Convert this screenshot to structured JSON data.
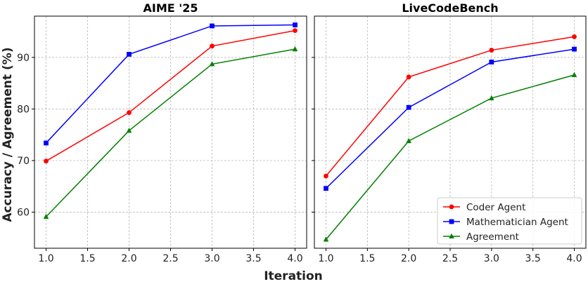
{
  "chart_data": {
    "type": "line",
    "xlabel": "Iteration",
    "ylabel": "Accuracy / Agreement (%)",
    "legend": {
      "placement": "lower-right",
      "panel": "LiveCodeBench"
    },
    "grid": true,
    "series_styles": [
      {
        "name": "Coder Agent",
        "color": "#ff0000",
        "marker": "circle"
      },
      {
        "name": "Mathematician Agent",
        "color": "#0000ff",
        "marker": "square"
      },
      {
        "name": "Agreement",
        "color": "#008000",
        "marker": "triangle"
      }
    ],
    "x_ticks": [
      "1.0",
      "1.5",
      "2.0",
      "2.5",
      "3.0",
      "3.5",
      "4.0"
    ],
    "y_ticks": [
      "60",
      "70",
      "80",
      "90"
    ],
    "xlim": [
      0.86,
      4.14
    ],
    "ylim": [
      53,
      98
    ],
    "panels": [
      {
        "title": "AIME '25",
        "x": [
          1,
          2,
          3,
          4
        ],
        "series": [
          {
            "name": "Coder Agent",
            "values": [
              69.9,
              79.3,
              92.2,
              95.2
            ]
          },
          {
            "name": "Mathematician Agent",
            "values": [
              73.4,
              90.6,
              96.1,
              96.3
            ]
          },
          {
            "name": "Agreement",
            "values": [
              59.1,
              75.8,
              88.7,
              91.6
            ]
          }
        ]
      },
      {
        "title": "LiveCodeBench",
        "x": [
          1,
          2,
          3,
          4
        ],
        "series": [
          {
            "name": "Coder Agent",
            "values": [
              67.0,
              86.2,
              91.4,
              94.0
            ]
          },
          {
            "name": "Mathematician Agent",
            "values": [
              64.6,
              80.3,
              89.1,
              91.6
            ]
          },
          {
            "name": "Agreement",
            "values": [
              54.7,
              73.8,
              82.1,
              86.6
            ]
          }
        ]
      }
    ]
  }
}
